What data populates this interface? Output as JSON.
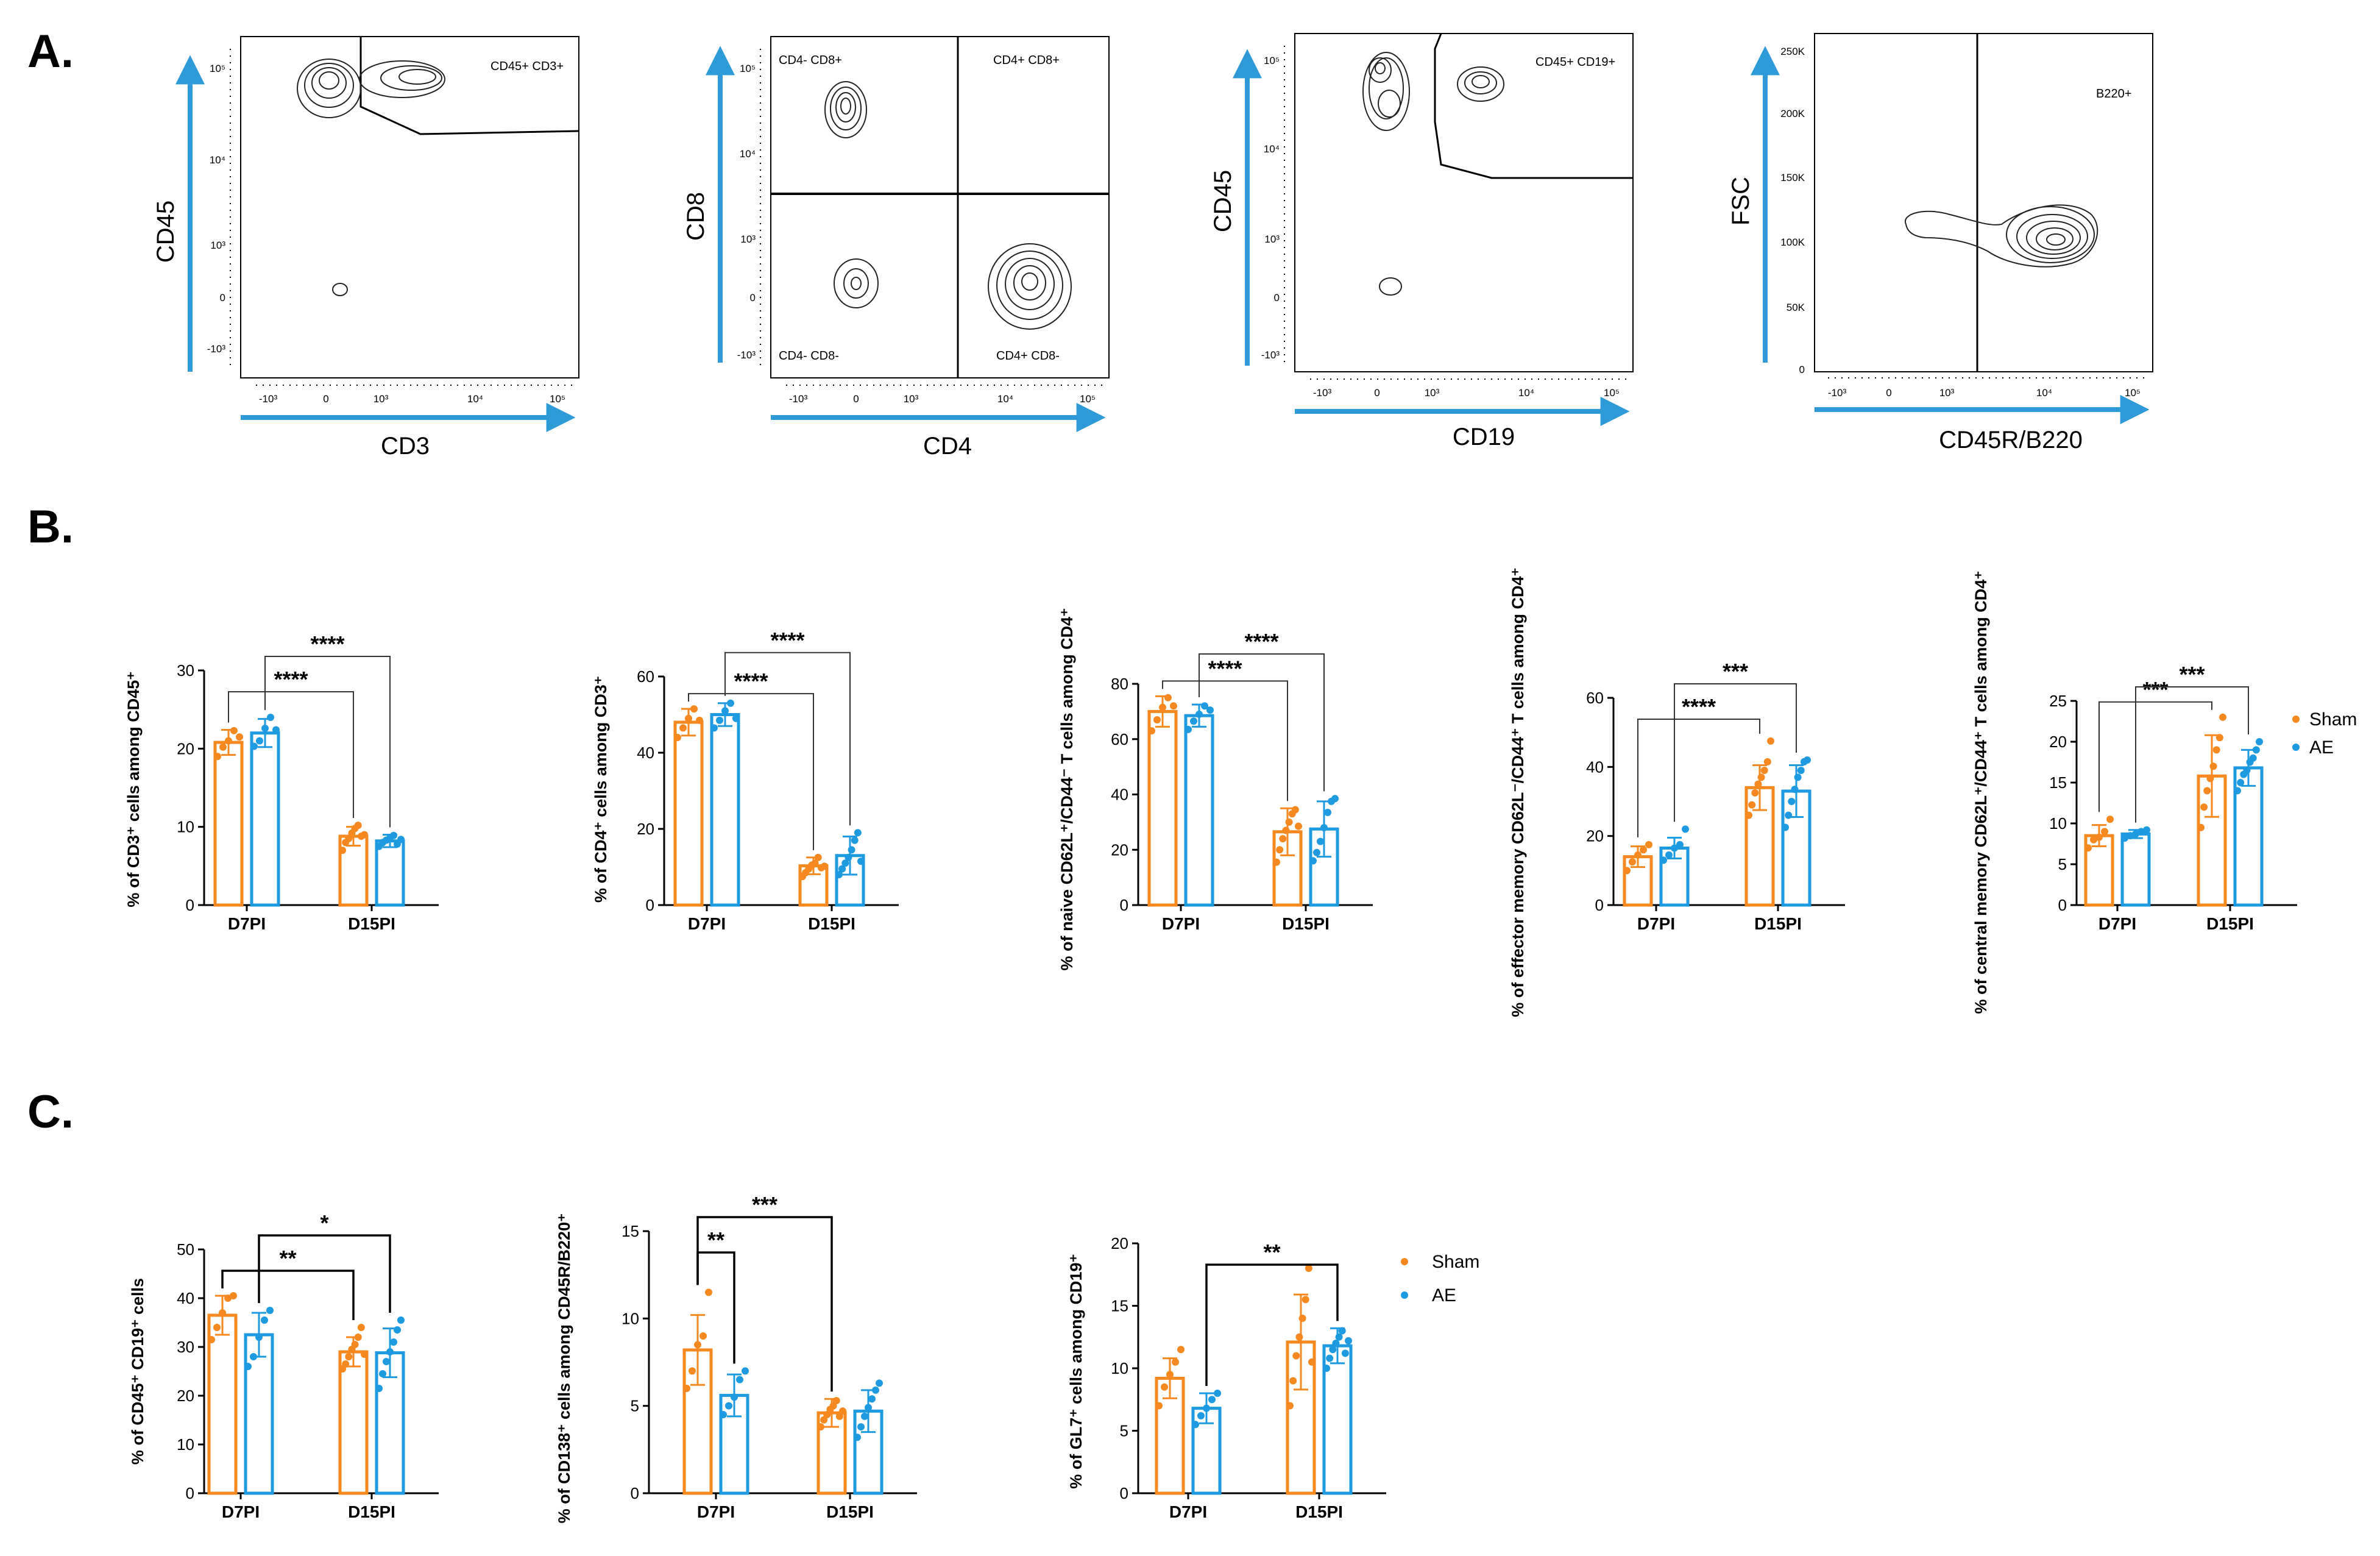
{
  "panel_labels": {
    "a": "A.",
    "b": "B.",
    "c": "C."
  },
  "colors": {
    "sham": "#F5891F",
    "ae": "#1E9BE0",
    "axis_arrow": "#2E9BD8",
    "gate": "#000000"
  },
  "flow_plots": [
    {
      "id": "cd45-cd3",
      "xlabel": "CD3",
      "ylabel": "CD45",
      "gate_labels": [
        "CD45+ CD3+"
      ],
      "xticks": [
        "-10³",
        "0",
        "10³",
        "10⁴",
        "10⁵"
      ],
      "yticks": [
        "10⁵",
        "10⁴",
        "10³",
        "0",
        "-10³"
      ]
    },
    {
      "id": "cd8-cd4",
      "xlabel": "CD4",
      "ylabel": "CD8",
      "gate_labels": [
        "CD4- CD8+",
        "CD4+ CD8+",
        "CD4- CD8-",
        "CD4+ CD8-"
      ],
      "xticks": [
        "-10³",
        "0",
        "10³",
        "10⁴",
        "10⁵"
      ],
      "yticks": [
        "10⁵",
        "10⁴",
        "10³",
        "0",
        "-10³"
      ]
    },
    {
      "id": "cd45-cd19",
      "xlabel": "CD19",
      "ylabel": "CD45",
      "gate_labels": [
        "CD45+ CD19+"
      ],
      "xticks": [
        "-10³",
        "0",
        "10³",
        "10⁴",
        "10⁵"
      ],
      "yticks": [
        "10⁵",
        "10⁴",
        "10³",
        "0",
        "-10³"
      ]
    },
    {
      "id": "fsc-b220",
      "xlabel": "CD45R/B220",
      "ylabel": "FSC",
      "gate_labels": [
        "B220+"
      ],
      "xticks": [
        "-10³",
        "0",
        "10³",
        "10⁴",
        "10⁵"
      ],
      "yticks": [
        "250K",
        "200K",
        "150K",
        "100K",
        "50K",
        "0"
      ]
    }
  ],
  "legend": {
    "sham": "Sham",
    "ae": "AE"
  },
  "chart_data": [
    {
      "type": "bar",
      "id": "b1",
      "categories": [
        "D7PI",
        "D15PI"
      ],
      "ylabel": "% of CD3⁺ cells among CD45⁺",
      "ylim": [
        0,
        30
      ],
      "yticks": [
        0,
        10,
        20,
        30
      ],
      "series": [
        {
          "name": "Sham",
          "values": [
            20.8,
            8.8
          ],
          "sd": [
            1.6,
            1.2
          ],
          "points": [
            [
              19.0,
              20.2,
              21.0,
              22.3,
              21.5
            ],
            [
              7.0,
              8.0,
              8.5,
              9.2,
              9.8,
              10.2,
              8.8,
              9.0
            ]
          ]
        },
        {
          "name": "AE",
          "values": [
            22.0,
            8.2
          ],
          "sd": [
            1.8,
            0.8
          ],
          "points": [
            [
              20.3,
              21.0,
              22.6,
              24.0,
              22.4
            ],
            [
              7.5,
              8.0,
              8.3,
              8.6,
              8.9,
              7.8,
              8.4
            ]
          ]
        }
      ],
      "significance": [
        {
          "from": [
            0,
            "Sham"
          ],
          "to": [
            1,
            "Sham"
          ],
          "label": "****",
          "level": 0
        },
        {
          "from": [
            0,
            "AE"
          ],
          "to": [
            1,
            "AE"
          ],
          "label": "****",
          "level": 1
        }
      ]
    },
    {
      "type": "bar",
      "id": "b2",
      "categories": [
        "D7PI",
        "D15PI"
      ],
      "ylabel": "% of CD4⁺ cells among CD3⁺",
      "ylim": [
        0,
        60
      ],
      "yticks": [
        0,
        20,
        40,
        60
      ],
      "series": [
        {
          "name": "Sham",
          "values": [
            48.0,
            10.3
          ],
          "sd": [
            3.5,
            2.2
          ],
          "points": [
            [
              44.0,
              46.5,
              49.0,
              51.5,
              48.5
            ],
            [
              7.5,
              8.5,
              9.5,
              10.5,
              11.0,
              12.5,
              9.8,
              10.2
            ]
          ]
        },
        {
          "name": "AE",
          "values": [
            50.0,
            13.0
          ],
          "sd": [
            3.0,
            5.0
          ],
          "points": [
            [
              46.5,
              48.5,
              51.0,
              53.0,
              49.0
            ],
            [
              8.0,
              9.5,
              11.0,
              12.5,
              14.5,
              17.0,
              19.0,
              11.5
            ]
          ]
        }
      ],
      "significance": [
        {
          "from": [
            0,
            "Sham"
          ],
          "to": [
            1,
            "Sham"
          ],
          "label": "****",
          "level": 0
        },
        {
          "from": [
            0,
            "AE"
          ],
          "to": [
            1,
            "AE"
          ],
          "label": "****",
          "level": 1
        }
      ]
    },
    {
      "type": "bar",
      "id": "b3",
      "categories": [
        "D7PI",
        "D15PI"
      ],
      "ylabel": "% of naive CD62L⁺/CD44⁻ T cells among CD4⁺",
      "ylim": [
        0,
        80
      ],
      "yticks": [
        0,
        20,
        40,
        60,
        80
      ],
      "series": [
        {
          "name": "Sham",
          "values": [
            70.0,
            26.5
          ],
          "sd": [
            5.5,
            8.5
          ],
          "points": [
            [
              63.0,
              67.0,
              71.5,
              75.0,
              72.0
            ],
            [
              15.5,
              20.0,
              24.0,
              27.0,
              30.0,
              33.0,
              34.5,
              28.5
            ]
          ]
        },
        {
          "name": "AE",
          "values": [
            68.5,
            27.5
          ],
          "sd": [
            4.0,
            10.0
          ],
          "points": [
            [
              63.5,
              66.5,
              69.0,
              72.0,
              70.5
            ],
            [
              16.0,
              19.0,
              23.0,
              28.0,
              33.5,
              37.5,
              38.5
            ]
          ]
        }
      ],
      "significance": [
        {
          "from": [
            0,
            "Sham"
          ],
          "to": [
            1,
            "Sham"
          ],
          "label": "****",
          "level": 0
        },
        {
          "from": [
            0,
            "AE"
          ],
          "to": [
            1,
            "AE"
          ],
          "label": "****",
          "level": 1
        }
      ]
    },
    {
      "type": "bar",
      "id": "b4",
      "categories": [
        "D7PI",
        "D15PI"
      ],
      "ylabel": "% of effector memory CD62L⁻/CD44⁺ T cells among CD4⁺",
      "ylim": [
        0,
        60
      ],
      "yticks": [
        0,
        20,
        40,
        60
      ],
      "series": [
        {
          "name": "Sham",
          "values": [
            14.0,
            34.0
          ],
          "sd": [
            3.0,
            6.5
          ],
          "points": [
            [
              10.0,
              12.5,
              14.5,
              16.0,
              17.5
            ],
            [
              26.0,
              29.0,
              32.5,
              35.0,
              37.0,
              39.0,
              41.5,
              47.5
            ]
          ]
        },
        {
          "name": "AE",
          "values": [
            16.5,
            33.0
          ],
          "sd": [
            3.0,
            7.5
          ],
          "points": [
            [
              13.0,
              14.5,
              16.5,
              17.5,
              22.0
            ],
            [
              22.5,
              26.0,
              30.0,
              33.5,
              37.0,
              39.0,
              41.5,
              42.0
            ]
          ]
        }
      ],
      "significance": [
        {
          "from": [
            0,
            "Sham"
          ],
          "to": [
            1,
            "Sham"
          ],
          "label": "****",
          "level": 0
        },
        {
          "from": [
            0,
            "AE"
          ],
          "to": [
            1,
            "AE"
          ],
          "label": "***",
          "level": 1
        }
      ]
    },
    {
      "type": "bar",
      "id": "b5",
      "categories": [
        "D7PI",
        "D15PI"
      ],
      "ylabel": "% of central memory CD62L⁺/CD44⁺ T cells among CD4⁺",
      "ylim": [
        0,
        25
      ],
      "yticks": [
        0,
        5,
        10,
        15,
        20,
        25
      ],
      "series": [
        {
          "name": "Sham",
          "values": [
            8.5,
            15.8
          ],
          "sd": [
            1.3,
            5.0
          ],
          "points": [
            [
              7.0,
              8.0,
              8.3,
              9.0,
              10.5
            ],
            [
              9.5,
              12.0,
              14.0,
              15.5,
              17.0,
              19.0,
              20.5,
              23.0
            ]
          ]
        },
        {
          "name": "AE",
          "values": [
            8.7,
            16.8
          ],
          "sd": [
            0.5,
            2.2
          ],
          "points": [
            [
              8.2,
              8.5,
              8.7,
              9.0,
              9.2
            ],
            [
              14.0,
              15.0,
              16.0,
              16.5,
              17.5,
              18.0,
              19.0,
              20.0
            ]
          ]
        }
      ],
      "significance": [
        {
          "from": [
            0,
            "Sham"
          ],
          "to": [
            1,
            "Sham"
          ],
          "label": "***",
          "level": 0
        },
        {
          "from": [
            0,
            "AE"
          ],
          "to": [
            1,
            "AE"
          ],
          "label": "***",
          "level": 1
        }
      ]
    },
    {
      "type": "bar",
      "id": "c1",
      "categories": [
        "D7PI",
        "D15PI"
      ],
      "ylabel": "% of CD45⁺ CD19⁺ cells",
      "ylim": [
        0,
        50
      ],
      "yticks": [
        0,
        10,
        20,
        30,
        40,
        50
      ],
      "series": [
        {
          "name": "Sham",
          "values": [
            36.5,
            29.0
          ],
          "sd": [
            4.0,
            3.0
          ],
          "points": [
            [
              31.5,
              34.0,
              37.0,
              40.0,
              40.5
            ],
            [
              25.5,
              26.5,
              28.0,
              29.5,
              30.5,
              32.0,
              34.0,
              28.5
            ]
          ]
        },
        {
          "name": "AE",
          "values": [
            32.5,
            28.8
          ],
          "sd": [
            4.5,
            5.0
          ],
          "points": [
            [
              26.0,
              28.0,
              32.0,
              35.5,
              37.5
            ],
            [
              21.5,
              24.5,
              27.0,
              29.0,
              31.0,
              33.5,
              35.5
            ]
          ]
        }
      ],
      "significance": [
        {
          "from": [
            0,
            "Sham"
          ],
          "to": [
            1,
            "Sham"
          ],
          "label": "**",
          "level": 0
        },
        {
          "from": [
            0,
            "AE"
          ],
          "to": [
            1,
            "AE"
          ],
          "label": "*",
          "level": 1
        }
      ]
    },
    {
      "type": "bar",
      "id": "c2",
      "categories": [
        "D7PI",
        "D15PI"
      ],
      "ylabel": "% of CD138⁺ cells among CD45R/B220⁺",
      "ylim": [
        0,
        15
      ],
      "yticks": [
        0,
        5,
        10,
        15
      ],
      "series": [
        {
          "name": "Sham",
          "values": [
            8.2,
            4.6
          ],
          "sd": [
            2.0,
            0.8
          ],
          "points": [
            [
              6.0,
              7.0,
              8.5,
              9.0,
              11.5
            ],
            [
              3.8,
              4.2,
              4.5,
              4.8,
              5.0,
              5.3,
              4.4,
              4.7
            ]
          ]
        },
        {
          "name": "AE",
          "values": [
            5.6,
            4.7
          ],
          "sd": [
            1.2,
            1.2
          ],
          "points": [
            [
              4.5,
              5.0,
              5.5,
              6.5,
              7.0
            ],
            [
              3.2,
              3.8,
              4.4,
              4.9,
              5.4,
              5.9,
              6.3
            ]
          ]
        }
      ],
      "significance": [
        {
          "from": [
            0,
            "Sham"
          ],
          "to": [
            0,
            "AE"
          ],
          "label": "**",
          "level": 0
        },
        {
          "from": [
            0,
            "Sham"
          ],
          "to": [
            1,
            "Sham"
          ],
          "label": "***",
          "level": 1
        }
      ]
    },
    {
      "type": "bar",
      "id": "c3",
      "categories": [
        "D7PI",
        "D15PI"
      ],
      "ylabel": "% of GL7⁺ cells among CD19⁺",
      "ylim": [
        0,
        20
      ],
      "yticks": [
        0,
        5,
        10,
        15,
        20
      ],
      "series": [
        {
          "name": "Sham",
          "values": [
            9.2,
            12.1
          ],
          "sd": [
            1.6,
            3.8
          ],
          "points": [
            [
              7.0,
              8.5,
              9.5,
              10.5,
              11.5
            ],
            [
              7.0,
              9.0,
              11.0,
              12.5,
              14.0,
              15.5,
              18.0,
              10.5
            ]
          ]
        },
        {
          "name": "AE",
          "values": [
            6.8,
            11.8
          ],
          "sd": [
            1.2,
            1.4
          ],
          "points": [
            [
              5.5,
              6.2,
              6.8,
              7.5,
              8.0
            ],
            [
              10.0,
              10.8,
              11.5,
              12.0,
              12.5,
              13.0,
              11.2,
              12.2
            ]
          ]
        }
      ],
      "significance": [
        {
          "from": [
            0,
            "AE"
          ],
          "to": [
            1,
            "AE"
          ],
          "label": "**",
          "level": 0
        }
      ]
    }
  ]
}
